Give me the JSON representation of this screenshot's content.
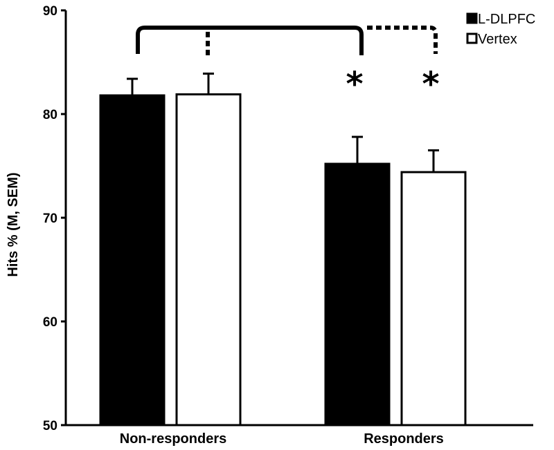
{
  "chart_data": {
    "type": "bar",
    "title": "",
    "xlabel": "",
    "ylabel": "Hits % (M, SEM)",
    "ylim": [
      50,
      90
    ],
    "yticks": [
      "50",
      "60",
      "70",
      "80",
      "90"
    ],
    "categories": [
      "Non-responders",
      "Responders"
    ],
    "series": [
      {
        "name": "L-DLPFC",
        "values": [
          81.8,
          75.2
        ],
        "errors": [
          1.6,
          2.6
        ],
        "color": "#000000"
      },
      {
        "name": "Vertex",
        "values": [
          81.9,
          74.4
        ],
        "errors": [
          2.0,
          2.1
        ],
        "color": "#ffffff"
      }
    ],
    "annotations": [
      {
        "text": "*",
        "category": "Responders",
        "series": "L-DLPFC"
      },
      {
        "text": "*",
        "category": "Responders",
        "series": "Vertex"
      }
    ],
    "comparisons": [
      {
        "from": "Non-responders",
        "to": "Responders",
        "series": "L-DLPFC",
        "line_style": "solid"
      },
      {
        "from": "Non-responders",
        "to": "Responders",
        "series": "Vertex",
        "line_style": "dotted"
      }
    ],
    "legend_position": "top-right",
    "grid": false
  }
}
